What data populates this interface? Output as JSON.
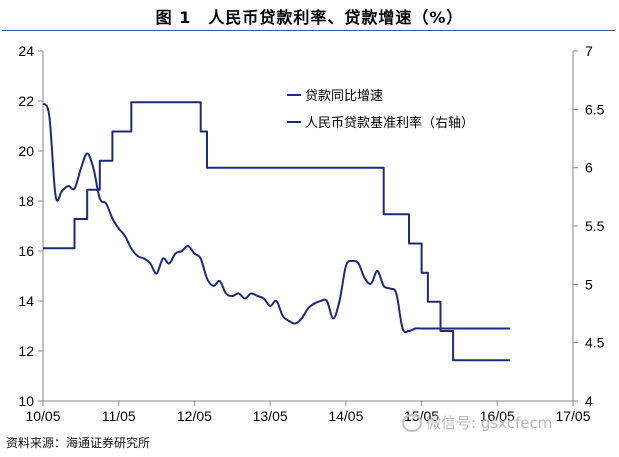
{
  "title": "图 1　人民币贷款利率、贷款增速（%）",
  "source": "资料来源：海通证券研究所",
  "watermark": "微信号: gsxcfecm",
  "colors": {
    "line": "#1b2b7a",
    "axis": "#8a8a8a",
    "text": "#000000"
  },
  "chart_data": {
    "type": "line",
    "x_tick_labels": [
      "10/05",
      "11/05",
      "12/05",
      "13/05",
      "14/05",
      "15/05",
      "16/05",
      "17/05"
    ],
    "xlim": [
      "2010-05",
      "2017-05"
    ],
    "y_left": {
      "lim": [
        10,
        24
      ],
      "ticks": [
        10,
        12,
        14,
        16,
        18,
        20,
        22,
        24
      ]
    },
    "y_right": {
      "lim": [
        4,
        7
      ],
      "ticks": [
        4,
        4.5,
        5,
        5.5,
        6,
        6.5,
        7
      ]
    },
    "grid": false,
    "legend_position": "top-right",
    "series": [
      {
        "name": "贷款同比增速",
        "axis": "left",
        "style": "smooth",
        "x": [
          "2010-05",
          "2010-06",
          "2010-07",
          "2010-08",
          "2010-09",
          "2010-10",
          "2010-11",
          "2010-12",
          "2011-01",
          "2011-02",
          "2011-03",
          "2011-04",
          "2011-05",
          "2011-06",
          "2011-07",
          "2011-08",
          "2011-09",
          "2011-10",
          "2011-11",
          "2011-12",
          "2012-01",
          "2012-02",
          "2012-03",
          "2012-04",
          "2012-05",
          "2012-06",
          "2012-07",
          "2012-08",
          "2012-09",
          "2012-10",
          "2012-11",
          "2012-12",
          "2013-01",
          "2013-02",
          "2013-03",
          "2013-04",
          "2013-05",
          "2013-06",
          "2013-07",
          "2013-08",
          "2013-09",
          "2013-10",
          "2013-11",
          "2013-12",
          "2014-01",
          "2014-02",
          "2014-03",
          "2014-04",
          "2014-05",
          "2014-06",
          "2014-07",
          "2014-08",
          "2014-09",
          "2014-10",
          "2014-11",
          "2014-12",
          "2015-01",
          "2015-02",
          "2015-03",
          "2015-04",
          "2015-05",
          "2015-06",
          "2015-07",
          "2015-08",
          "2015-09",
          "2015-10",
          "2015-11",
          "2015-12",
          "2016-01",
          "2016-02",
          "2016-03",
          "2016-04",
          "2016-05",
          "2016-06",
          "2016-07"
        ],
        "values": [
          21.9,
          21.4,
          18.2,
          18.4,
          18.6,
          18.5,
          19.3,
          19.9,
          19.3,
          18.1,
          17.9,
          17.3,
          16.9,
          16.6,
          16.1,
          15.8,
          15.7,
          15.5,
          15.1,
          15.7,
          15.5,
          15.9,
          16.0,
          16.2,
          15.9,
          15.7,
          14.9,
          14.6,
          14.8,
          14.3,
          14.2,
          14.3,
          14.1,
          14.3,
          14.2,
          14.1,
          13.8,
          14.0,
          13.4,
          13.2,
          13.1,
          13.3,
          13.7,
          13.9,
          14.0,
          14.0,
          13.3,
          14.0,
          15.4,
          15.6,
          15.5,
          14.9,
          14.7,
          15.2,
          14.6,
          14.5,
          14.3,
          12.9,
          12.8,
          12.9,
          12.9,
          12.9,
          12.9,
          12.9,
          12.9,
          12.9,
          12.9,
          12.9,
          12.9,
          12.9,
          12.9,
          12.9,
          12.9,
          12.9,
          12.9
        ]
      },
      {
        "name": "人民币贷款基准利率（右轴）",
        "axis": "right",
        "style": "step",
        "x": [
          "2010-05",
          "2010-10",
          "2010-12",
          "2011-02",
          "2011-04",
          "2011-07",
          "2012-06",
          "2012-07",
          "2014-11",
          "2015-03",
          "2015-05",
          "2015-06",
          "2015-08",
          "2015-10",
          "2016-07"
        ],
        "values": [
          5.31,
          5.56,
          5.81,
          6.06,
          6.31,
          6.56,
          6.31,
          6.0,
          5.6,
          5.35,
          5.1,
          4.85,
          4.6,
          4.35,
          4.35
        ]
      }
    ]
  }
}
